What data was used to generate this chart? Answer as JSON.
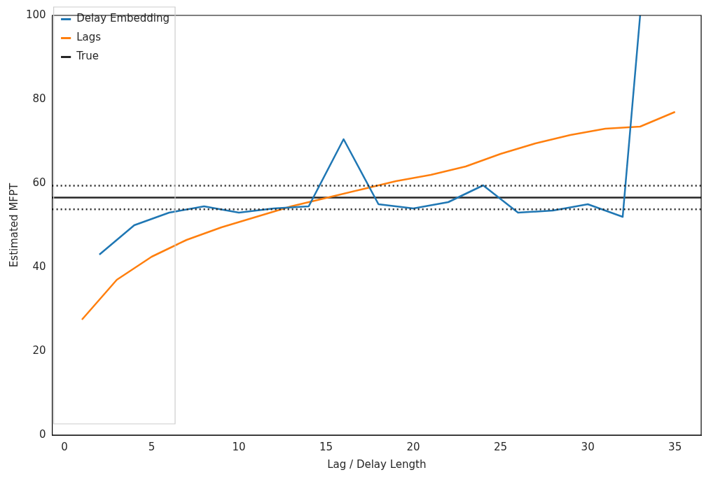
{
  "chart_data": {
    "type": "line",
    "xlabel": "Lag / Delay Length",
    "ylabel": "Estimated MFPT",
    "xlim": [
      -0.7,
      36.5
    ],
    "ylim": [
      0,
      100
    ],
    "xticks": [
      0,
      5,
      10,
      15,
      20,
      25,
      30,
      35
    ],
    "yticks": [
      0,
      20,
      40,
      60,
      80,
      100
    ],
    "grid": false,
    "legend": "top left",
    "marker": "none",
    "line_style": "solid",
    "series": [
      {
        "name": "Delay Embedding",
        "color": "#1f77b4",
        "x": [
          2,
          4,
          6,
          8,
          10,
          12,
          14,
          16,
          18,
          20,
          22,
          24,
          26,
          28,
          30,
          32,
          33
        ],
        "values": [
          43,
          50,
          53,
          54.5,
          53,
          54,
          54.5,
          70.5,
          55,
          54,
          55.5,
          59.5,
          53,
          53.5,
          55,
          52,
          100
        ]
      },
      {
        "name": "Lags",
        "color": "#ff7f0e",
        "x": [
          1,
          3,
          5,
          7,
          9,
          11,
          13,
          15,
          17,
          19,
          21,
          23,
          25,
          27,
          29,
          31,
          33,
          35
        ],
        "values": [
          27.5,
          37,
          42.5,
          46.5,
          49.5,
          52,
          54.5,
          56.5,
          58.5,
          60.5,
          62,
          64,
          67,
          69.5,
          71.5,
          73,
          73.5,
          77
        ]
      },
      {
        "name": "True",
        "color": "#262626",
        "x": [
          -0.7,
          36.5
        ],
        "values": [
          56.6,
          56.6
        ]
      }
    ],
    "ref_lines": [
      {
        "axis": "y",
        "value": 53.8,
        "color": "#262626",
        "line_style": "dotted"
      },
      {
        "axis": "y",
        "value": 59.4,
        "color": "#262626",
        "line_style": "dotted"
      }
    ]
  }
}
